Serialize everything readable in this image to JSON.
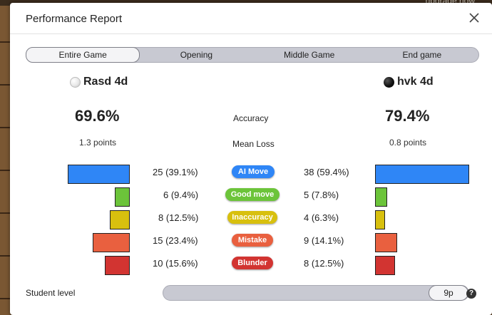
{
  "window": {
    "title": "Performance Report",
    "background_hint": "upgrade now"
  },
  "tabs": [
    {
      "label": "Entire Game",
      "active": true
    },
    {
      "label": "Opening",
      "active": false
    },
    {
      "label": "Middle Game",
      "active": false
    },
    {
      "label": "End game",
      "active": false
    }
  ],
  "players": {
    "white": {
      "name": "Rasd 4d",
      "accuracy": "69.6%",
      "mean_loss": "1.3 points"
    },
    "black": {
      "name": "hvk 4d",
      "accuracy": "79.4%",
      "mean_loss": "0.8 points"
    }
  },
  "labels": {
    "accuracy": "Accuracy",
    "mean_loss": "Mean Loss",
    "student_level": "Student level",
    "student_level_value": "9p",
    "help": "?"
  },
  "categories": [
    {
      "label": "AI Move",
      "color": "#2f86f6",
      "white": "25 (39.1%)",
      "black": "38 (59.4%)",
      "white_pct": 39.1,
      "black_pct": 59.4
    },
    {
      "label": "Good move",
      "color": "#6cc43a",
      "white": "6 (9.4%)",
      "black": "5 (7.8%)",
      "white_pct": 9.4,
      "black_pct": 7.8
    },
    {
      "label": "Inaccuracy",
      "color": "#d8c00e",
      "white": "8 (12.5%)",
      "black": "4 (6.3%)",
      "white_pct": 12.5,
      "black_pct": 6.3
    },
    {
      "label": "Mistake",
      "color": "#e9603f",
      "white": "15 (23.4%)",
      "black": "9 (14.1%)",
      "white_pct": 23.4,
      "black_pct": 14.1
    },
    {
      "label": "Blunder",
      "color": "#d23431",
      "white": "10 (15.6%)",
      "black": "8 (12.5%)",
      "white_pct": 15.6,
      "black_pct": 12.5
    }
  ]
}
